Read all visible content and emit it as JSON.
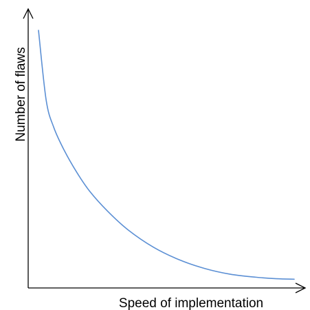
{
  "chart_data": {
    "type": "line",
    "title": "",
    "xlabel": "Speed of implementation",
    "ylabel": "Number of flaws",
    "grid": false,
    "legend": "none",
    "axis_ticks": false,
    "shape": "decreasing convex curve",
    "series": [
      {
        "color": "#5b8fd4",
        "x": [
          0.0,
          0.03,
          0.06,
          0.1,
          0.15,
          0.2,
          0.27,
          0.35,
          0.45,
          0.55,
          0.65,
          0.75,
          0.85,
          0.93,
          1.0
        ],
        "y": [
          1.0,
          0.72,
          0.61,
          0.52,
          0.43,
          0.355,
          0.275,
          0.2,
          0.13,
          0.08,
          0.045,
          0.022,
          0.01,
          0.004,
          0.002
        ]
      }
    ]
  }
}
